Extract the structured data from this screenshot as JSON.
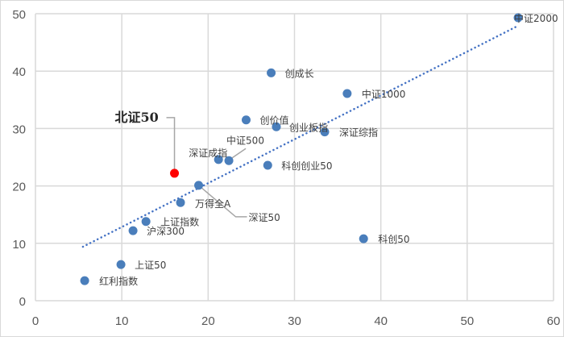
{
  "chart_data": {
    "type": "scatter",
    "title": "",
    "xlabel": "",
    "ylabel": "",
    "xlim": [
      0,
      60
    ],
    "ylim": [
      0,
      50
    ],
    "xticks": [
      "0",
      "10",
      "20",
      "30",
      "40",
      "50",
      "60"
    ],
    "yticks": [
      "0",
      "10",
      "20",
      "30",
      "40",
      "50"
    ],
    "grid": true,
    "legend": "none",
    "point_color": "#4a7ebb",
    "highlight_color": "#ff0000",
    "trendline": {
      "style": "dotted",
      "color": "#4472c4",
      "x": [
        5.5,
        55.9
      ],
      "y": [
        9.4,
        47.9
      ]
    },
    "points": [
      {
        "label": "红利指数",
        "x": 5.7,
        "y": 3.5
      },
      {
        "label": "上证50",
        "x": 9.9,
        "y": 6.3
      },
      {
        "label": "沪深300",
        "x": 11.3,
        "y": 12.2
      },
      {
        "label": "上证指数",
        "x": 12.8,
        "y": 13.8
      },
      {
        "label": "万得全A",
        "x": 16.8,
        "y": 17.1
      },
      {
        "label": "北证50",
        "x": 16.1,
        "y": 22.2,
        "highlight": true
      },
      {
        "label": "深证50",
        "x": 18.9,
        "y": 20.1
      },
      {
        "label": "深证成指",
        "x": 21.2,
        "y": 24.6
      },
      {
        "label": "中证500",
        "x": 22.4,
        "y": 24.4
      },
      {
        "label": "创价值",
        "x": 24.4,
        "y": 31.5
      },
      {
        "label": "创成长",
        "x": 27.3,
        "y": 39.7
      },
      {
        "label": "科创创业50",
        "x": 26.9,
        "y": 23.6
      },
      {
        "label": "创业板指",
        "x": 27.9,
        "y": 30.3
      },
      {
        "label": "深证综指",
        "x": 33.5,
        "y": 29.4
      },
      {
        "label": "中证1000",
        "x": 36.1,
        "y": 36.1
      },
      {
        "label": "科创50",
        "x": 38.0,
        "y": 10.8
      },
      {
        "label": "中证2000",
        "x": 55.9,
        "y": 49.3
      }
    ]
  }
}
